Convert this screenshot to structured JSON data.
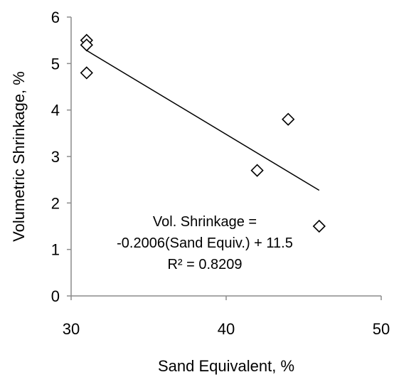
{
  "chart_data": {
    "type": "scatter",
    "title": "",
    "xlabel": "Sand Equivalent, %",
    "ylabel": "Volumetric Shrinkage, %",
    "xlim": [
      30,
      50
    ],
    "ylim": [
      0,
      6
    ],
    "xticks": [
      "30",
      "40",
      "50"
    ],
    "yticks": [
      "0",
      "1",
      "2",
      "3",
      "4",
      "5",
      "6"
    ],
    "grid": false,
    "legend": "none",
    "marker": "diamond-open",
    "marker_color": "#000000",
    "series": [
      {
        "x": [
          31,
          31,
          31,
          42,
          44,
          46
        ],
        "y": [
          5.5,
          5.4,
          4.8,
          2.7,
          3.8,
          1.5
        ]
      }
    ],
    "trendline": {
      "type": "linear",
      "slope": -0.2006,
      "intercept": 11.5,
      "x_range": [
        31,
        46
      ],
      "color": "#000000"
    },
    "annotation": {
      "line1": "Vol. Shrinkage =",
      "line2": "-0.2006(Sand Equiv.) + 11.5",
      "line3": "R² = 0.8209"
    }
  }
}
